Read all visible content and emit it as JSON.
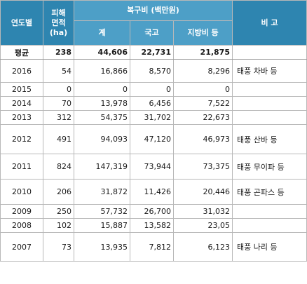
{
  "header": {
    "year": "연도별",
    "area_line1": "피해",
    "area_line2": "면적",
    "area_line3": "(ha)",
    "cost_group": "복구비 (백만원)",
    "total": "계",
    "national": "국고",
    "local": "지방비 등",
    "note": "비 고"
  },
  "rows": [
    {
      "year": "평균",
      "area": "238",
      "total": "44,606",
      "national": "22,731",
      "local": "21,875",
      "note": ""
    },
    {
      "year": "2016",
      "area": "54",
      "total": "16,866",
      "national": "8,570",
      "local": "8,296",
      "note": "태풍 차바 등"
    },
    {
      "year": "2015",
      "area": "0",
      "total": "0",
      "national": "0",
      "local": "0",
      "note": ""
    },
    {
      "year": "2014",
      "area": "70",
      "total": "13,978",
      "national": "6,456",
      "local": "7,522",
      "note": ""
    },
    {
      "year": "2013",
      "area": "312",
      "total": "54,375",
      "national": "31,702",
      "local": "22,673",
      "note": ""
    },
    {
      "year": "2012",
      "area": "491",
      "total": "94,093",
      "national": "47,120",
      "local": "46,973",
      "note": "태풍 산바 등"
    },
    {
      "year": "2011",
      "area": "824",
      "total": "147,319",
      "national": "73,944",
      "local": "73,375",
      "note": "태풍 무이파 등"
    },
    {
      "year": "2010",
      "area": "206",
      "total": "31,872",
      "national": "11,426",
      "local": "20,446",
      "note": "태풍 곤파스 등"
    },
    {
      "year": "2009",
      "area": "250",
      "total": "57,732",
      "national": "26,700",
      "local": "31,032",
      "note": ""
    },
    {
      "year": "2008",
      "area": "102",
      "total": "15,887",
      "national": "13,582",
      "local": "23,05",
      "note": ""
    },
    {
      "year": "2007",
      "area": "73",
      "total": "13,935",
      "national": "7,812",
      "local": "6,123",
      "note": "태풍 나리 등"
    }
  ]
}
